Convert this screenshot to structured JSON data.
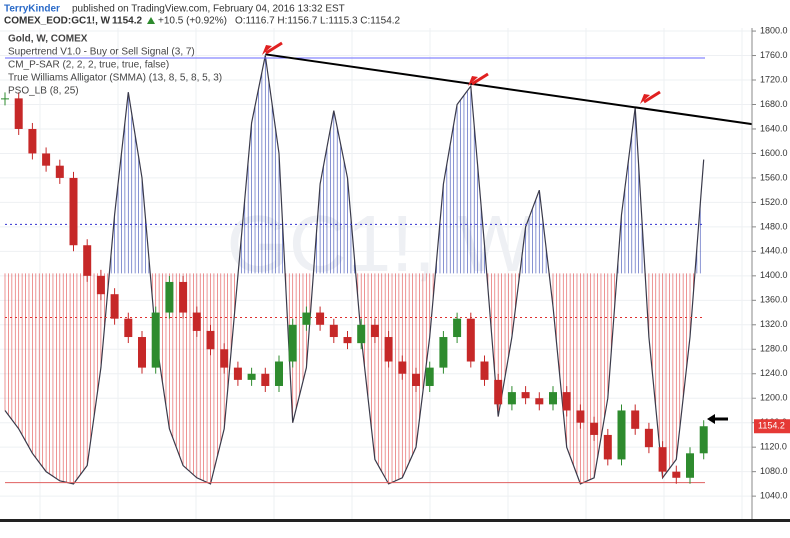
{
  "header": {
    "author": "TerryKinder",
    "published": "published on TradingView.com, February 04, 2016 13:32 EST",
    "symbol": "COMEX_EOD:GC1!, W",
    "last": "1154.2",
    "change": "+10.5 (+0.92%)",
    "ohlc": "O:1116.7 H:1156.7 L:1115.3 C:1154.2"
  },
  "chart_data": {
    "type": "candle",
    "watermark": "GC1!, W",
    "indicators": [
      "Gold, W, COMEX",
      "Supertrend V1.0 - Buy or Sell Signal (3, 7)",
      "CM_P-SAR (2, 2, 2, true, true, false)",
      "True Williams Alligator (SMMA) (13, 8, 5, 8, 5, 3)",
      "PSO_LB (8, 25)"
    ],
    "categories": [
      null,
      null,
      null,
      null,
      null,
      null,
      null,
      null,
      null,
      null,
      null,
      null,
      null,
      null,
      null,
      null,
      null,
      null,
      null,
      null,
      null,
      null,
      null,
      null,
      null,
      null,
      null,
      null,
      null,
      null,
      null,
      null,
      null,
      null,
      null,
      null,
      null,
      null,
      null,
      null,
      null,
      null,
      null,
      null,
      null,
      null,
      null,
      null,
      null,
      null,
      null,
      null
    ],
    "series": [
      {
        "name": "Gold",
        "up_color": "#2e8b2e",
        "down_color": "#c62828",
        "values": [
          1690,
          1640,
          1600,
          1580,
          1560,
          1450,
          1400,
          1370,
          1330,
          1300,
          1250,
          1340,
          1390,
          1340,
          1310,
          1280,
          1250,
          1230,
          1240,
          1220,
          1260,
          1320,
          1340,
          1320,
          1300,
          1290,
          1320,
          1300,
          1260,
          1240,
          1220,
          1250,
          1300,
          1330,
          1260,
          1230,
          1190,
          1210,
          1200,
          1190,
          1210,
          1180,
          1160,
          1140,
          1100,
          1180,
          1150,
          1120,
          1080,
          1070,
          1110,
          1154.2
        ]
      },
      {
        "name": "PSO_LB",
        "color": "#3a3a4a",
        "up_fill": "#2b3fb0",
        "down_fill": "#e04040",
        "baseline": 1404,
        "values": [
          1180,
          1150,
          1110,
          1080,
          1065,
          1060,
          1090,
          1250,
          1500,
          1700,
          1560,
          1300,
          1150,
          1090,
          1070,
          1060,
          1150,
          1400,
          1650,
          1760,
          1600,
          1160,
          1250,
          1550,
          1670,
          1560,
          1300,
          1100,
          1060,
          1070,
          1120,
          1300,
          1550,
          1680,
          1710,
          1450,
          1170,
          1300,
          1480,
          1540,
          1350,
          1120,
          1060,
          1070,
          1200,
          1500,
          1675,
          1300,
          1070,
          1100,
          1300,
          1590
        ]
      }
    ],
    "levels": [
      {
        "value": 1756,
        "color": "#6a6aff",
        "dash": false
      },
      {
        "value": 1484,
        "color": "#3030d0",
        "dash": true
      },
      {
        "value": 1332,
        "color": "#e03030",
        "dash": true
      },
      {
        "value": 1062,
        "color": "#e06060",
        "dash": false
      }
    ],
    "trend_line": {
      "start_index": 19,
      "values": [
        1762,
        1648
      ],
      "color": "#000000"
    },
    "last_price": {
      "value": 1154.2,
      "label": "1154.2",
      "color": "#e53935"
    },
    "ylim": [
      1001,
      1805
    ],
    "yticks": [
      {
        "value": 1040,
        "label": "1040.0"
      },
      {
        "value": 1080,
        "label": "1080.0"
      },
      {
        "value": 1120,
        "label": "1120.0"
      },
      {
        "value": 1160,
        "label": "1160.0"
      },
      {
        "value": 1200,
        "label": "1200.0"
      },
      {
        "value": 1240,
        "label": "1240.0"
      },
      {
        "value": 1280,
        "label": "1280.0"
      },
      {
        "value": 1320,
        "label": "1320.0"
      },
      {
        "value": 1360,
        "label": "1360.0"
      },
      {
        "value": 1400,
        "label": "1400.0"
      },
      {
        "value": 1440,
        "label": "1440.0"
      },
      {
        "value": 1480,
        "label": "1480.0"
      },
      {
        "value": 1520,
        "label": "1520.0"
      },
      {
        "value": 1560,
        "label": "1560.0"
      },
      {
        "value": 1600,
        "label": "1600.0"
      },
      {
        "value": 1640,
        "label": "1640.0"
      },
      {
        "value": 1680,
        "label": "1680.0"
      },
      {
        "value": 1720,
        "label": "1720.0"
      },
      {
        "value": 1760,
        "label": "1760.0"
      },
      {
        "value": 1800,
        "label": "1800.0"
      }
    ],
    "grid": true
  }
}
